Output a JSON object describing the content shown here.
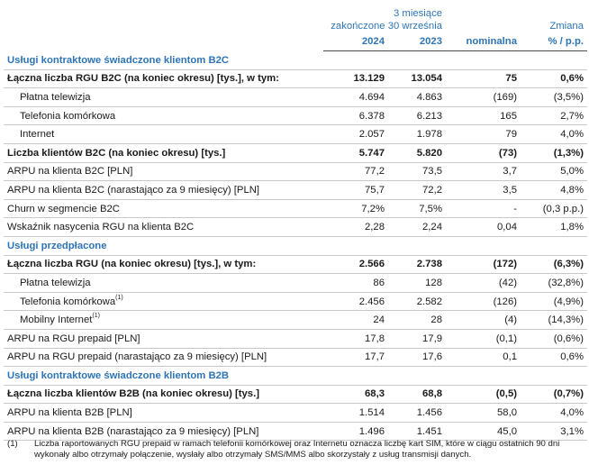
{
  "header": {
    "period_line1": "3 miesiące",
    "period_line2": "zakończone 30 września",
    "change_label": "Zmiana",
    "col_2024": "2024",
    "col_2023": "2023",
    "col_nominal": "nominalna",
    "col_pct": "% / p.p."
  },
  "sections": [
    {
      "title": "Usługi kontraktowe świadczone klientom B2C",
      "rows": [
        {
          "label": "Łączna liczba RGU B2C (na koniec okresu) [tys.], w tym:",
          "v2024": "13.129",
          "v2023": "13.054",
          "nominal": "75",
          "pct": "0,6%",
          "bold": true,
          "indent": false
        },
        {
          "label": "Płatna telewizja",
          "v2024": "4.694",
          "v2023": "4.863",
          "nominal": "(169)",
          "pct": "(3,5%)",
          "bold": false,
          "indent": true
        },
        {
          "label": "Telefonia komórkowa",
          "v2024": "6.378",
          "v2023": "6.213",
          "nominal": "165",
          "pct": "2,7%",
          "bold": false,
          "indent": true
        },
        {
          "label": "Internet",
          "v2024": "2.057",
          "v2023": "1.978",
          "nominal": "79",
          "pct": "4,0%",
          "bold": false,
          "indent": true
        },
        {
          "label": "Liczba klientów B2C (na koniec okresu) [tys.]",
          "v2024": "5.747",
          "v2023": "5.820",
          "nominal": "(73)",
          "pct": "(1,3%)",
          "bold": true,
          "indent": false
        },
        {
          "label": "ARPU na klienta B2C [PLN]",
          "v2024": "77,2",
          "v2023": "73,5",
          "nominal": "3,7",
          "pct": "5,0%",
          "bold": false,
          "indent": false
        },
        {
          "label": "ARPU na klienta B2C (narastająco za 9 miesięcy) [PLN]",
          "v2024": "75,7",
          "v2023": "72,2",
          "nominal": "3,5",
          "pct": "4,8%",
          "bold": false,
          "indent": false
        },
        {
          "label": "Churn w segmencie B2C",
          "v2024": "7,2%",
          "v2023": "7,5%",
          "nominal": "-",
          "pct": "(0,3 p.p.)",
          "bold": false,
          "indent": false
        },
        {
          "label": "Wskaźnik nasycenia RGU na klienta B2C",
          "v2024": "2,28",
          "v2023": "2,24",
          "nominal": "0,04",
          "pct": "1,8%",
          "bold": false,
          "indent": false
        }
      ]
    },
    {
      "title": "Usługi przedpłacone",
      "rows": [
        {
          "label": "Łączna liczba RGU (na koniec okresu) [tys.], w tym:",
          "v2024": "2.566",
          "v2023": "2.738",
          "nominal": "(172)",
          "pct": "(6,3%)",
          "bold": true,
          "indent": false
        },
        {
          "label": "Płatna telewizja",
          "v2024": "86",
          "v2023": "128",
          "nominal": "(42)",
          "pct": "(32,8%)",
          "bold": false,
          "indent": true
        },
        {
          "label": "Telefonia komórkowa",
          "sup": "(1)",
          "v2024": "2.456",
          "v2023": "2.582",
          "nominal": "(126)",
          "pct": "(4,9%)",
          "bold": false,
          "indent": true
        },
        {
          "label": "Mobilny Internet",
          "sup": "(1)",
          "v2024": "24",
          "v2023": "28",
          "nominal": "(4)",
          "pct": "(14,3%)",
          "bold": false,
          "indent": true
        },
        {
          "label": "ARPU na RGU prepaid [PLN]",
          "v2024": "17,8",
          "v2023": "17,9",
          "nominal": "(0,1)",
          "pct": "(0,6%)",
          "bold": false,
          "indent": false
        },
        {
          "label": "ARPU na RGU prepaid (narastająco za 9 miesięcy) [PLN]",
          "v2024": "17,7",
          "v2023": "17,6",
          "nominal": "0,1",
          "pct": "0,6%",
          "bold": false,
          "indent": false
        }
      ]
    },
    {
      "title": "Usługi kontraktowe świadczone klientom B2B",
      "rows": [
        {
          "label": "Łączna liczba klientów B2B (na koniec okresu) [tys.]",
          "v2024": "68,3",
          "v2023": "68,8",
          "nominal": "(0,5)",
          "pct": "(0,7%)",
          "bold": true,
          "indent": false
        },
        {
          "label": "ARPU na klienta B2B [PLN]",
          "v2024": "1.514",
          "v2023": "1.456",
          "nominal": "58,0",
          "pct": "4,0%",
          "bold": false,
          "indent": false
        },
        {
          "label": "ARPU na klienta B2B (narastająco za 9 miesięcy) [PLN]",
          "v2024": "1.496",
          "v2023": "1.451",
          "nominal": "45,0",
          "pct": "3,1%",
          "bold": false,
          "indent": false
        }
      ]
    }
  ],
  "footnote": {
    "mark": "(1)",
    "text": "Liczba raportowanych RGU prepaid w ramach telefonii komórkowej oraz Internetu oznacza liczbę kart SIM, które w ciągu ostatnich 90 dni wykonały albo otrzymały połączenie, wysłały albo otrzymały SMS/MMS albo skorzystały z usług transmisji danych."
  }
}
